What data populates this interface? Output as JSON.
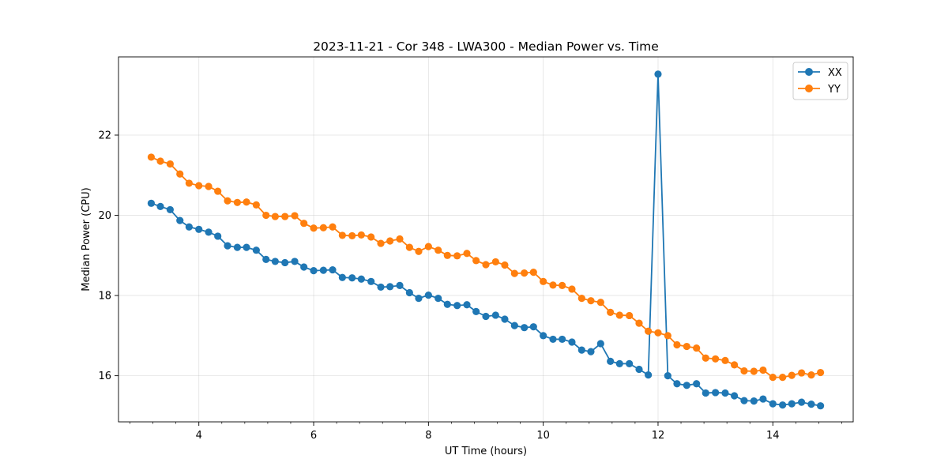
{
  "chart_data": {
    "type": "line",
    "title": "2023-11-21 - Cor 348 - LWA300 - Median Power vs. Time",
    "xlabel": "UT Time (hours)",
    "ylabel": "Median Power (CPU)",
    "xlim": [
      2.6,
      15.4
    ],
    "ylim": [
      14.85,
      23.95
    ],
    "xticks": [
      4,
      6,
      8,
      10,
      12,
      14
    ],
    "yticks": [
      16,
      18,
      20,
      22
    ],
    "grid": true,
    "legend_position": "top-right",
    "x": [
      3.17,
      3.33,
      3.5,
      3.67,
      3.83,
      4.0,
      4.17,
      4.33,
      4.5,
      4.67,
      4.83,
      5.0,
      5.17,
      5.33,
      5.5,
      5.67,
      5.83,
      6.0,
      6.17,
      6.33,
      6.5,
      6.67,
      6.83,
      7.0,
      7.17,
      7.33,
      7.5,
      7.67,
      7.83,
      8.0,
      8.17,
      8.33,
      8.5,
      8.67,
      8.83,
      9.0,
      9.17,
      9.33,
      9.5,
      9.67,
      9.83,
      10.0,
      10.17,
      10.33,
      10.5,
      10.67,
      10.83,
      11.0,
      11.17,
      11.33,
      11.5,
      11.67,
      11.83,
      12.0,
      12.17,
      12.33,
      12.5,
      12.67,
      12.83,
      13.0,
      13.17,
      13.33,
      13.5,
      13.67,
      13.83,
      14.0,
      14.17,
      14.33,
      14.5,
      14.67,
      14.83
    ],
    "series": [
      {
        "name": "XX",
        "color": "#1f77b4",
        "values": [
          20.3,
          20.22,
          20.14,
          19.87,
          19.71,
          19.65,
          19.58,
          19.48,
          19.24,
          19.2,
          19.2,
          19.13,
          18.9,
          18.85,
          18.82,
          18.85,
          18.71,
          18.62,
          18.63,
          18.64,
          18.45,
          18.44,
          18.41,
          18.35,
          18.21,
          18.22,
          18.25,
          18.07,
          17.93,
          18.01,
          17.93,
          17.78,
          17.75,
          17.77,
          17.6,
          17.48,
          17.51,
          17.41,
          17.25,
          17.2,
          17.22,
          17.0,
          16.91,
          16.91,
          16.84,
          16.64,
          16.6,
          16.8,
          16.36,
          16.3,
          16.3,
          16.16,
          16.02,
          23.52,
          16.0,
          15.8,
          15.76,
          15.8,
          15.57,
          15.58,
          15.57,
          15.5,
          15.38,
          15.37,
          15.42,
          15.3,
          15.27,
          15.3,
          15.34,
          15.29,
          15.25
        ]
      },
      {
        "name": "YY",
        "color": "#ff7f0e",
        "values": [
          21.45,
          21.35,
          21.28,
          21.03,
          20.8,
          20.74,
          20.72,
          20.6,
          20.36,
          20.32,
          20.33,
          20.26,
          20.0,
          19.97,
          19.97,
          19.99,
          19.8,
          19.68,
          19.69,
          19.71,
          19.5,
          19.49,
          19.51,
          19.46,
          19.3,
          19.36,
          19.41,
          19.2,
          19.1,
          19.22,
          19.13,
          19.0,
          18.99,
          19.05,
          18.87,
          18.77,
          18.84,
          18.76,
          18.55,
          18.56,
          18.58,
          18.35,
          18.26,
          18.25,
          18.16,
          17.93,
          17.87,
          17.83,
          17.58,
          17.51,
          17.5,
          17.31,
          17.11,
          17.07,
          17.0,
          16.77,
          16.73,
          16.69,
          16.44,
          16.42,
          16.38,
          16.27,
          16.12,
          16.11,
          16.14,
          15.96,
          15.96,
          16.01,
          16.07,
          16.02,
          16.08
        ]
      }
    ]
  }
}
